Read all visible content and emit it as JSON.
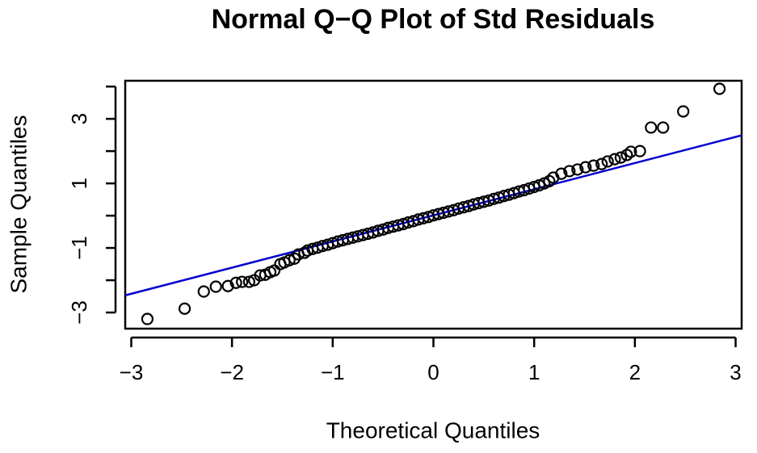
{
  "chart_data": {
    "type": "scatter",
    "title": "Normal Q−Q Plot of Std Residuals",
    "x_label": "Theoretical Quantiles",
    "y_label": "Sample Quantiles",
    "color": "#000000",
    "x": [
      -2.84,
      -2.47,
      -2.28,
      -2.16,
      -2.04,
      -1.96,
      -1.9,
      -1.83,
      -1.78,
      -1.72,
      -1.67,
      -1.62,
      -1.58,
      -1.52,
      -1.48,
      -1.43,
      -1.38,
      -1.34,
      -1.28,
      -1.25,
      -1.2,
      -1.15,
      -1.1,
      -1.05,
      -1.0,
      -0.95,
      -0.9,
      -0.85,
      -0.8,
      -0.75,
      -0.7,
      -0.65,
      -0.6,
      -0.55,
      -0.5,
      -0.45,
      -0.4,
      -0.35,
      -0.3,
      -0.25,
      -0.2,
      -0.15,
      -0.1,
      -0.05,
      0,
      0.05,
      0.1,
      0.15,
      0.2,
      0.25,
      0.3,
      0.35,
      0.4,
      0.45,
      0.5,
      0.55,
      0.6,
      0.65,
      0.7,
      0.75,
      0.8,
      0.85,
      0.9,
      0.95,
      1.0,
      1.05,
      1.1,
      1.15,
      1.19,
      1.27,
      1.35,
      1.43,
      1.51,
      1.59,
      1.67,
      1.73,
      1.8,
      1.86,
      1.92,
      1.96,
      2.05,
      2.16,
      2.28,
      2.48,
      2.84
    ],
    "values": [
      -3.2,
      -2.88,
      -2.35,
      -2.2,
      -2.18,
      -2.08,
      -2.05,
      -2.05,
      -2.0,
      -1.85,
      -1.83,
      -1.75,
      -1.7,
      -1.5,
      -1.45,
      -1.38,
      -1.33,
      -1.2,
      -1.15,
      -1.08,
      -1.03,
      -0.99,
      -0.94,
      -0.9,
      -0.85,
      -0.8,
      -0.76,
      -0.72,
      -0.68,
      -0.64,
      -0.6,
      -0.56,
      -0.52,
      -0.47,
      -0.43,
      -0.38,
      -0.34,
      -0.3,
      -0.26,
      -0.21,
      -0.17,
      -0.12,
      -0.08,
      -0.04,
      0.01,
      0.05,
      0.09,
      0.13,
      0.17,
      0.22,
      0.26,
      0.3,
      0.35,
      0.39,
      0.43,
      0.47,
      0.52,
      0.56,
      0.61,
      0.65,
      0.7,
      0.75,
      0.79,
      0.84,
      0.89,
      0.94,
      1.0,
      1.07,
      1.18,
      1.3,
      1.38,
      1.43,
      1.5,
      1.55,
      1.6,
      1.68,
      1.75,
      1.8,
      1.88,
      1.98,
      2.0,
      2.73,
      2.73,
      3.23,
      3.93
    ],
    "reference_line": {
      "intercept": 0.01,
      "slope": 0.81,
      "color": "#0000cc"
    },
    "xlim": [
      -3.06,
      3.06
    ],
    "ylim": [
      -3.5,
      4.18
    ],
    "xticks": [
      {
        "value": -3,
        "label": "−3"
      },
      {
        "value": -2,
        "label": "−2"
      },
      {
        "value": -1,
        "label": "−1"
      },
      0,
      1,
      2,
      3
    ],
    "yticks": [
      {
        "value": -3,
        "label": "−3"
      },
      {
        "value": -1,
        "label": "−1"
      },
      1,
      3
    ],
    "minor_yticks": [
      -2,
      0,
      2,
      4
    ],
    "grid": false
  }
}
